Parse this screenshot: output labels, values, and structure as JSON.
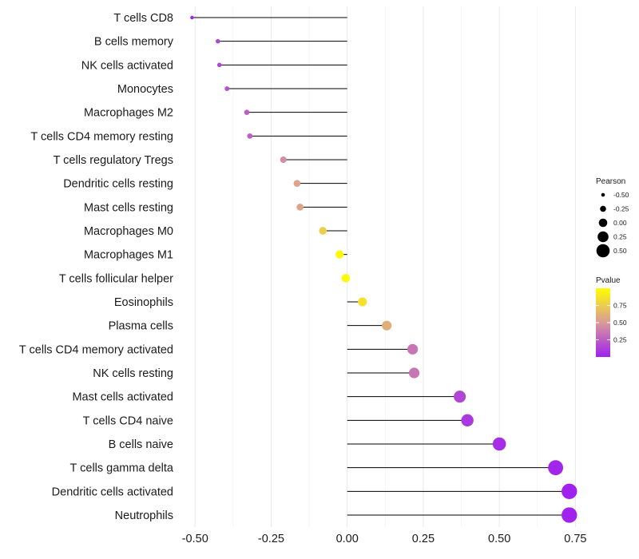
{
  "chart_data": {
    "type": "lollipop",
    "title": "",
    "xlabel": "",
    "ylabel": "",
    "xlim": [
      -0.54,
      0.77
    ],
    "x_ticks": [
      "-0.50",
      "-0.25",
      "0.00",
      "0.25",
      "0.50",
      "0.75"
    ],
    "x_tick_values": [
      -0.5,
      -0.25,
      0,
      0.25,
      0.5,
      0.75
    ],
    "categories": [
      "T cells CD8",
      "B cells memory",
      "NK cells activated",
      "Monocytes",
      "Macrophages M2",
      "T cells CD4 memory resting",
      "T cells regulatory  Tregs",
      "Dendritic cells resting",
      "Mast cells resting",
      "Macrophages M0",
      "Macrophages M1",
      "T cells follicular helper",
      "Eosinophils",
      "Plasma cells",
      "T cells CD4 memory activated",
      "NK cells resting",
      "Mast cells activated",
      "T cells CD4 naive",
      "B cells naive",
      "T cells gamma delta",
      "Dendritic cells activated",
      "Neutrophils"
    ],
    "pearson": [
      -0.51,
      -0.425,
      -0.42,
      -0.395,
      -0.33,
      -0.32,
      -0.21,
      -0.165,
      -0.155,
      -0.08,
      -0.025,
      -0.005,
      0.05,
      0.13,
      0.215,
      0.22,
      0.37,
      0.395,
      0.5,
      0.685,
      0.73,
      0.73
    ],
    "pvalue": [
      0.02,
      0.15,
      0.15,
      0.2,
      0.25,
      0.25,
      0.45,
      0.55,
      0.55,
      0.75,
      0.97,
      0.98,
      0.85,
      0.6,
      0.35,
      0.35,
      0.15,
      0.1,
      0.05,
      0.03,
      0.01,
      0.01
    ],
    "legend": {
      "size_title": "Pearson",
      "size_labels": [
        "-0.50",
        "-0.25",
        "0.00",
        "0.25",
        "0.50"
      ],
      "size_values": [
        -0.5,
        -0.25,
        0,
        0.25,
        0.5
      ],
      "color_title": "Pvalue",
      "color_labels": [
        "0.75",
        "0.50",
        "0.25"
      ],
      "color_values": [
        0.75,
        0.5,
        0.25
      ],
      "color_range": [
        0,
        1
      ],
      "position": "right"
    },
    "colors": {
      "low": "#a020f0",
      "mid": "#d99a9a",
      "high": "#ffff00",
      "segment": "#000000",
      "grid": "#ebebeb"
    }
  }
}
